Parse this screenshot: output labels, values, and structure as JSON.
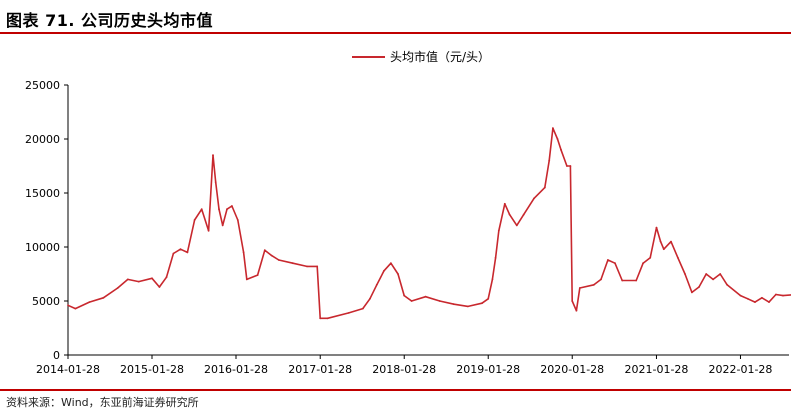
{
  "header": {
    "title": "图表 71. 公司历史头均市值"
  },
  "footer": {
    "source": "资料来源：Wind，东亚前海证券研究所"
  },
  "colors": {
    "series": "#c8282e",
    "accent": "#c00000"
  },
  "chart_data": {
    "type": "line",
    "title": "图表 71. 公司历史头均市值",
    "xlabel": "",
    "ylabel": "",
    "ylim": [
      0,
      25000
    ],
    "yticks": [
      0,
      5000,
      10000,
      15000,
      20000,
      25000
    ],
    "xticks": [
      "2014-01-28",
      "2015-01-28",
      "2016-01-28",
      "2017-01-28",
      "2018-01-28",
      "2019-01-28",
      "2020-01-28",
      "2021-01-28",
      "2022-01-28"
    ],
    "xlim": [
      "2014-01-28",
      "2022-09-30"
    ],
    "legend": "top-center",
    "grid": false,
    "series": [
      {
        "name": "头均市值（元/头）",
        "color": "#c8282e",
        "points": [
          [
            "2014-01-28",
            4600
          ],
          [
            "2014-03-01",
            4300
          ],
          [
            "2014-05-01",
            4900
          ],
          [
            "2014-07-01",
            5300
          ],
          [
            "2014-09-01",
            6200
          ],
          [
            "2014-10-15",
            7000
          ],
          [
            "2014-12-01",
            6800
          ],
          [
            "2015-01-28",
            7100
          ],
          [
            "2015-03-01",
            6300
          ],
          [
            "2015-04-01",
            7200
          ],
          [
            "2015-05-01",
            9400
          ],
          [
            "2015-06-01",
            9800
          ],
          [
            "2015-07-01",
            9500
          ],
          [
            "2015-08-01",
            12500
          ],
          [
            "2015-09-01",
            13500
          ],
          [
            "2015-10-01",
            11500
          ],
          [
            "2015-10-20",
            18500
          ],
          [
            "2015-11-01",
            16000
          ],
          [
            "2015-11-15",
            13500
          ],
          [
            "2015-12-01",
            12000
          ],
          [
            "2015-12-20",
            13500
          ],
          [
            "2016-01-10",
            13800
          ],
          [
            "2016-02-05",
            12500
          ],
          [
            "2016-03-01",
            9500
          ],
          [
            "2016-03-15",
            7000
          ],
          [
            "2016-05-01",
            7400
          ],
          [
            "2016-06-01",
            9700
          ],
          [
            "2016-07-01",
            9200
          ],
          [
            "2016-08-01",
            8800
          ],
          [
            "2016-10-01",
            8500
          ],
          [
            "2016-12-01",
            8200
          ],
          [
            "2017-01-15",
            8200
          ],
          [
            "2017-01-28",
            3400
          ],
          [
            "2017-03-01",
            3400
          ],
          [
            "2017-06-01",
            3900
          ],
          [
            "2017-08-01",
            4300
          ],
          [
            "2017-09-01",
            5200
          ],
          [
            "2017-10-01",
            6500
          ],
          [
            "2017-11-01",
            7800
          ],
          [
            "2017-12-01",
            8500
          ],
          [
            "2018-01-01",
            7500
          ],
          [
            "2018-01-28",
            5500
          ],
          [
            "2018-03-01",
            5000
          ],
          [
            "2018-05-01",
            5400
          ],
          [
            "2018-07-01",
            5000
          ],
          [
            "2018-09-01",
            4700
          ],
          [
            "2018-11-01",
            4500
          ],
          [
            "2019-01-01",
            4800
          ],
          [
            "2019-01-28",
            5200
          ],
          [
            "2019-02-15",
            7000
          ],
          [
            "2019-03-01",
            9000
          ],
          [
            "2019-03-15",
            11500
          ],
          [
            "2019-04-10",
            14000
          ],
          [
            "2019-05-01",
            13000
          ],
          [
            "2019-06-01",
            12000
          ],
          [
            "2019-07-01",
            13000
          ],
          [
            "2019-08-15",
            14500
          ],
          [
            "2019-10-01",
            15500
          ],
          [
            "2019-10-20",
            18000
          ],
          [
            "2019-11-05",
            21000
          ],
          [
            "2019-11-25",
            20000
          ],
          [
            "2019-12-10",
            19000
          ],
          [
            "2020-01-05",
            17500
          ],
          [
            "2020-01-20",
            17500
          ],
          [
            "2020-01-28",
            5000
          ],
          [
            "2020-02-15",
            4100
          ],
          [
            "2020-03-01",
            6200
          ],
          [
            "2020-05-01",
            6500
          ],
          [
            "2020-06-01",
            7000
          ],
          [
            "2020-07-01",
            8800
          ],
          [
            "2020-08-01",
            8500
          ],
          [
            "2020-09-01",
            6900
          ],
          [
            "2020-11-01",
            6900
          ],
          [
            "2020-12-01",
            8500
          ],
          [
            "2021-01-01",
            9000
          ],
          [
            "2021-01-28",
            11800
          ],
          [
            "2021-02-15",
            10500
          ],
          [
            "2021-03-01",
            9800
          ],
          [
            "2021-04-01",
            10500
          ],
          [
            "2021-05-01",
            9000
          ],
          [
            "2021-06-01",
            7500
          ],
          [
            "2021-07-01",
            5800
          ],
          [
            "2021-08-01",
            6300
          ],
          [
            "2021-09-01",
            7500
          ],
          [
            "2021-10-01",
            7000
          ],
          [
            "2021-11-01",
            7500
          ],
          [
            "2021-12-01",
            6500
          ],
          [
            "2022-01-28",
            5500
          ],
          [
            "2022-03-01",
            5200
          ],
          [
            "2022-04-01",
            4900
          ],
          [
            "2022-05-01",
            5300
          ],
          [
            "2022-06-01",
            4900
          ],
          [
            "2022-07-01",
            5600
          ],
          [
            "2022-08-01",
            5500
          ],
          [
            "2022-09-30",
            5600
          ]
        ]
      }
    ]
  }
}
